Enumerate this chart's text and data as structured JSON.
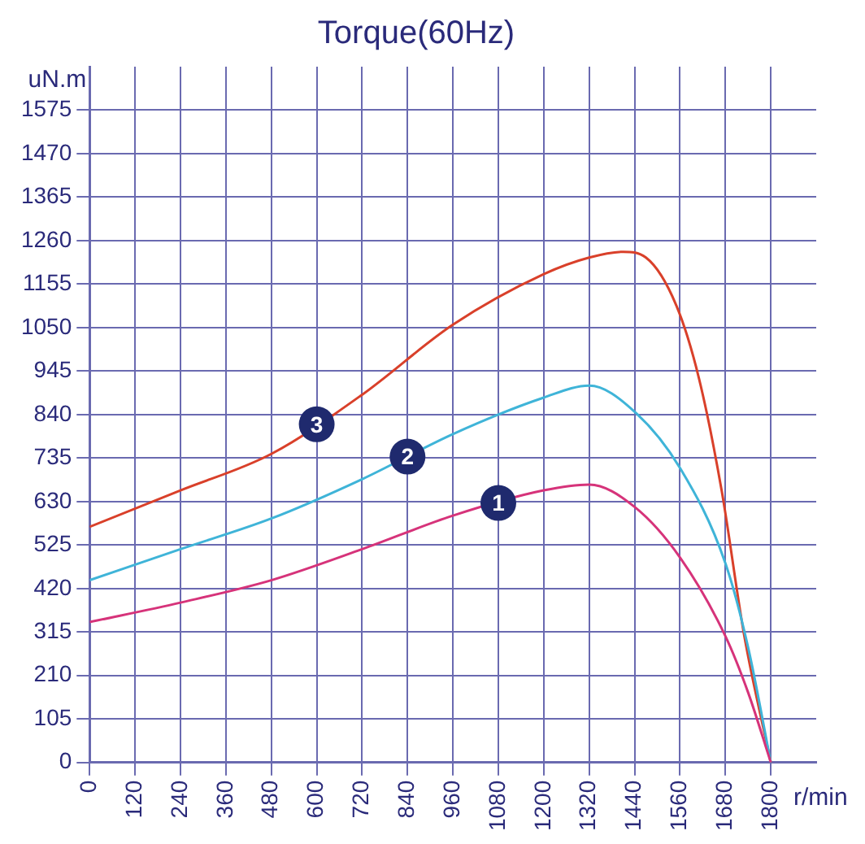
{
  "chart_data": {
    "type": "line",
    "title": "Torque(60Hz)",
    "xlabel": "r/min",
    "ylabel": "uN.m",
    "xlim": [
      0,
      1920
    ],
    "xticks": [
      0,
      120,
      240,
      360,
      480,
      600,
      720,
      840,
      960,
      1080,
      1200,
      1320,
      1440,
      1560,
      1680,
      1800
    ],
    "ylim": [
      0,
      1680
    ],
    "yticks": [
      0,
      105,
      210,
      315,
      420,
      525,
      630,
      735,
      840,
      945,
      1050,
      1155,
      1260,
      1365,
      1470,
      1575
    ],
    "grid": true,
    "legend": false,
    "marker": "none",
    "line_style": "solid",
    "series": [
      {
        "name": "1",
        "color": "#d6337a",
        "x": [
          0,
          240,
          480,
          720,
          960,
          1200,
          1320,
          1440,
          1560,
          1680,
          1740,
          1800
        ],
        "values": [
          339,
          386,
          440,
          515,
          596,
          657,
          671,
          617,
          495,
          305,
          169,
          0
        ]
      },
      {
        "name": "2",
        "color": "#3fb4d8",
        "x": [
          0,
          240,
          480,
          720,
          960,
          1200,
          1320,
          1440,
          1560,
          1680,
          1740,
          1800
        ],
        "values": [
          440,
          515,
          589,
          684,
          793,
          881,
          910,
          847,
          711,
          481,
          278,
          0
        ]
      },
      {
        "name": "3",
        "color": "#d9402a",
        "x": [
          0,
          240,
          480,
          720,
          960,
          1200,
          1320,
          1410,
          1470,
          1550,
          1610,
          1670,
          1730,
          1800
        ],
        "values": [
          569,
          657,
          745,
          888,
          1057,
          1179,
          1219,
          1233,
          1219,
          1104,
          928,
          657,
          305,
          0
        ]
      }
    ]
  }
}
